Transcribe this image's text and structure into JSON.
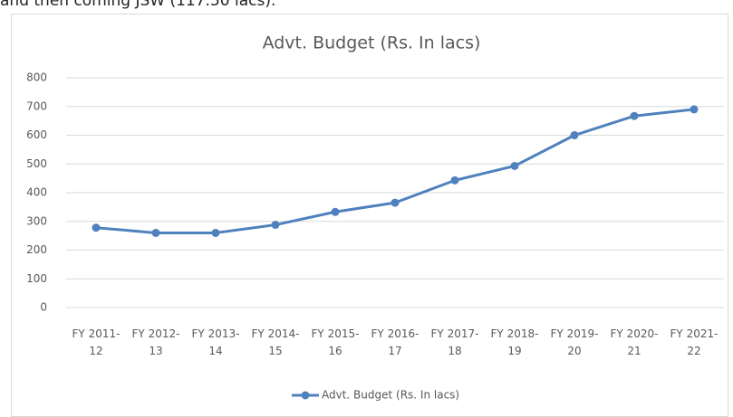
{
  "caption": "and then coming JSW (117.50 lacs).",
  "chart_data": {
    "type": "line",
    "title": "Advt. Budget (Rs. In lacs)",
    "categories": [
      "FY 2011-12",
      "FY 2012-13",
      "FY 2013-14",
      "FY 2014-15",
      "FY 2015-16",
      "FY 2016-17",
      "FY 2017-18",
      "FY 2018-19",
      "FY 2019-20",
      "FY 2020-21",
      "FY 2021-22"
    ],
    "series": [
      {
        "name": "Advt. Budget (Rs. In lacs)",
        "color": "#4f81bd",
        "values": [
          278,
          260,
          260,
          288,
          333,
          365,
          443,
          493,
          600,
          667,
          690
        ]
      }
    ],
    "ylim": [
      0,
      800
    ],
    "yticks": [
      0,
      100,
      200,
      300,
      400,
      500,
      600,
      700,
      800
    ],
    "grid": true,
    "legend": "bottom"
  }
}
